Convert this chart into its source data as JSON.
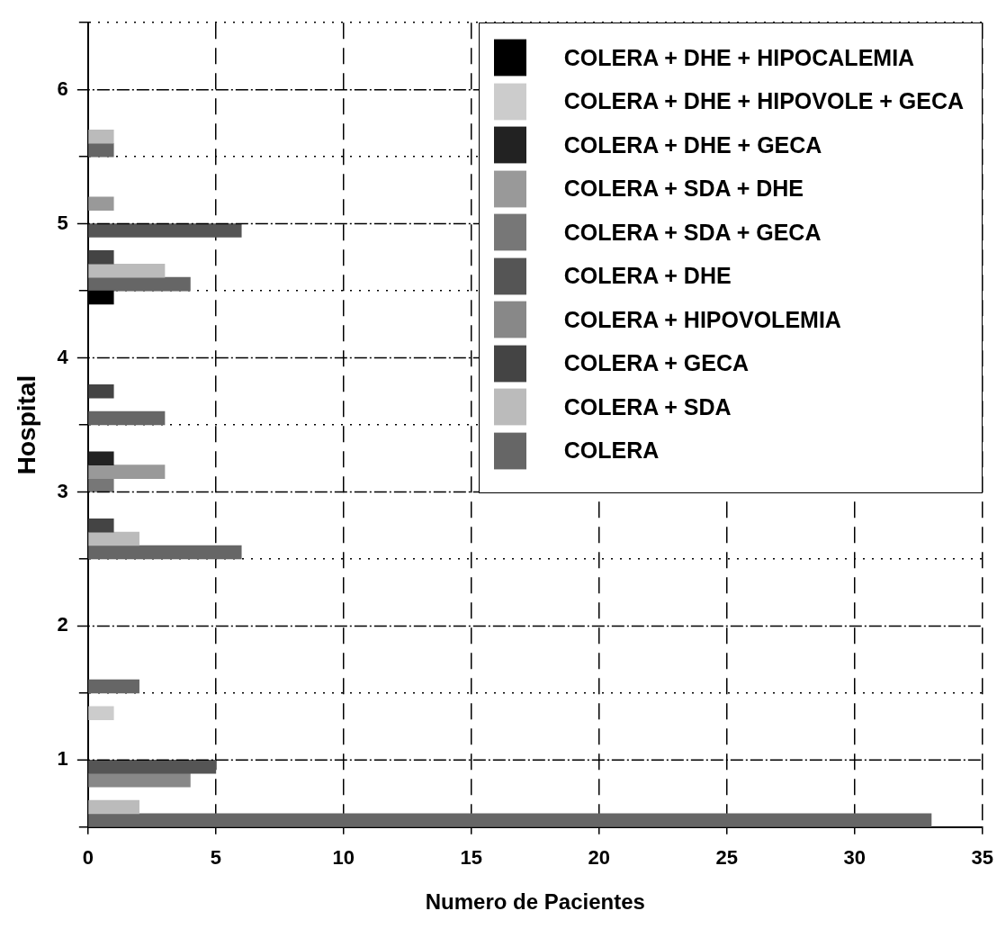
{
  "chart_data": {
    "type": "bar",
    "orientation": "horizontal",
    "xlabel": "Numero de Pacientes",
    "ylabel": "Hospital",
    "categories": [
      "6",
      "5",
      "4",
      "3",
      "2",
      "1"
    ],
    "series": [
      {
        "name": "COLERA + DHE + HIPOCALEMIA",
        "color": "#000000",
        "values": [
          null,
          null,
          1,
          null,
          null,
          null
        ]
      },
      {
        "name": "COLERA + DHE + HIPOVOLE + GECA",
        "color": "#cccccc",
        "values": [
          null,
          null,
          null,
          null,
          null,
          1
        ]
      },
      {
        "name": "COLERA + DHE + GECA",
        "color": "#222222",
        "values": [
          null,
          null,
          null,
          1,
          null,
          null
        ]
      },
      {
        "name": "COLERA + SDA + DHE",
        "color": "#999999",
        "values": [
          null,
          1,
          null,
          3,
          null,
          null
        ]
      },
      {
        "name": "COLERA + SDA + GECA",
        "color": "#777777",
        "values": [
          null,
          null,
          null,
          1,
          null,
          null
        ]
      },
      {
        "name": "COLERA + DHE",
        "color": "#555555",
        "values": [
          null,
          6,
          null,
          null,
          null,
          5
        ]
      },
      {
        "name": "COLERA + HIPOVOLEMIA",
        "color": "#888888",
        "values": [
          null,
          null,
          null,
          null,
          null,
          4
        ]
      },
      {
        "name": "COLERA + GECA",
        "color": "#444444",
        "values": [
          null,
          1,
          1,
          1,
          null,
          null
        ]
      },
      {
        "name": "COLERA + SDA",
        "color": "#bbbbbb",
        "values": [
          1,
          3,
          null,
          2,
          null,
          2
        ]
      },
      {
        "name": "COLERA",
        "color": "#666666",
        "values": [
          1,
          4,
          3,
          6,
          2,
          33
        ]
      }
    ],
    "xlim": [
      0,
      35
    ],
    "xticks": [
      0,
      5,
      10,
      15,
      20,
      25,
      30,
      35
    ],
    "grid": true,
    "legend": "top right"
  }
}
